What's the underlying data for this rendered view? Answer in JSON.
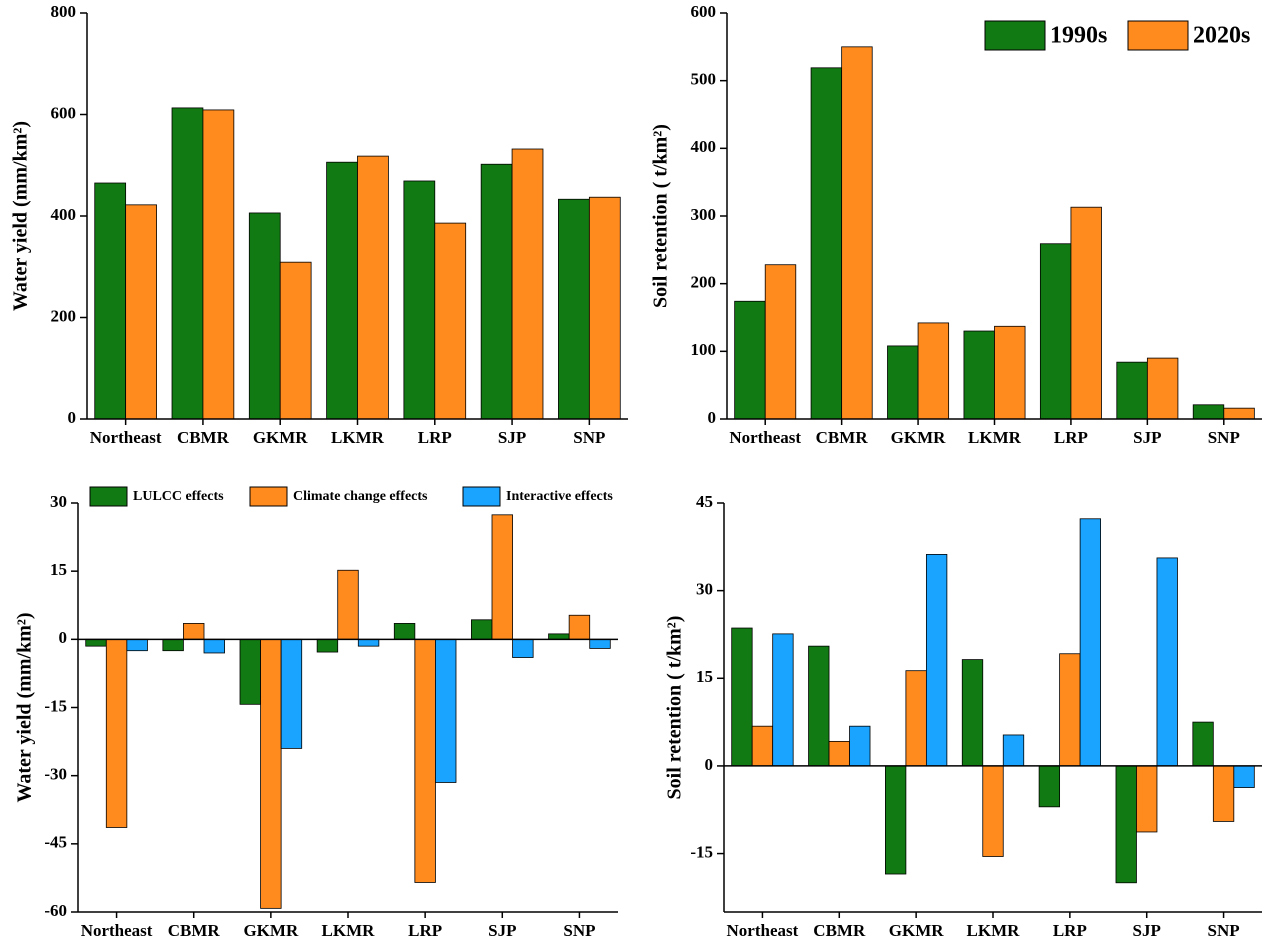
{
  "chart_data": [
    {
      "type": "bar",
      "ylabel": "Water yield (mm/km²)",
      "categories": [
        "Northeast",
        "CBMR",
        "GKMR",
        "LKMR",
        "LRP",
        "SJP",
        "SNP"
      ],
      "series": [
        {
          "color": "#127a12",
          "values": [
            465,
            613,
            406,
            506,
            469,
            502,
            433
          ]
        },
        {
          "color": "#ff8a1e",
          "values": [
            422,
            609,
            309,
            518,
            386,
            532,
            437
          ]
        }
      ],
      "ylim": [
        0,
        800
      ],
      "yticks": [
        0,
        200,
        400,
        600,
        800
      ]
    },
    {
      "type": "bar",
      "ylabel": "Soil retention ( t/km²)",
      "categories": [
        "Northeast",
        "CBMR",
        "GKMR",
        "LKMR",
        "LRP",
        "SJP",
        "SNP"
      ],
      "series": [
        {
          "name": "1990s",
          "color": "#127a12",
          "values": [
            174,
            519,
            108,
            130,
            259,
            84,
            21
          ]
        },
        {
          "name": "2020s",
          "color": "#ff8a1e",
          "values": [
            228,
            550,
            142,
            137,
            313,
            90,
            16
          ]
        }
      ],
      "ylim": [
        0,
        600
      ],
      "yticks": [
        0,
        100,
        200,
        300,
        400,
        500,
        600
      ],
      "legend": "upper right"
    },
    {
      "type": "bar",
      "ylabel": "Water yield (mm/km²)",
      "categories": [
        "Northeast",
        "CBMR",
        "GKMR",
        "LKMR",
        "LRP",
        "SJP",
        "SNP"
      ],
      "series": [
        {
          "name": "LULCC effects",
          "color": "#127a12",
          "values": [
            -1.5,
            -2.5,
            -14.3,
            -2.8,
            3.5,
            4.3,
            1.2
          ]
        },
        {
          "name": "Climate change effects",
          "color": "#ff8a1e",
          "values": [
            -41.4,
            3.5,
            -59.2,
            15.2,
            -53.5,
            27.4,
            5.3
          ]
        },
        {
          "name": "Interactive effects",
          "color": "#1aa3ff",
          "values": [
            -2.5,
            -3,
            -24,
            -1.5,
            -31.5,
            -4,
            -2
          ]
        }
      ],
      "ylim": [
        -60,
        30
      ],
      "yticks": [
        -60,
        -45,
        -30,
        -15,
        0,
        15,
        30
      ],
      "legend": "top"
    },
    {
      "type": "bar",
      "ylabel": "Soil retention ( t/km²)",
      "categories": [
        "Northeast",
        "CBMR",
        "GKMR",
        "LKMR",
        "LRP",
        "SJP",
        "SNP"
      ],
      "series": [
        {
          "color": "#127a12",
          "values": [
            23.6,
            20.5,
            -18.5,
            18.2,
            -7,
            -20,
            7.5
          ]
        },
        {
          "color": "#ff8a1e",
          "values": [
            6.8,
            4.2,
            16.3,
            -15.5,
            19.2,
            -11.3,
            -9.5
          ]
        },
        {
          "color": "#1aa3ff",
          "values": [
            22.6,
            6.8,
            36.2,
            5.3,
            42.3,
            35.6,
            -3.7
          ]
        }
      ],
      "ylim": [
        -25,
        45
      ],
      "yticks": [
        -15,
        0,
        15,
        30,
        45
      ]
    }
  ]
}
